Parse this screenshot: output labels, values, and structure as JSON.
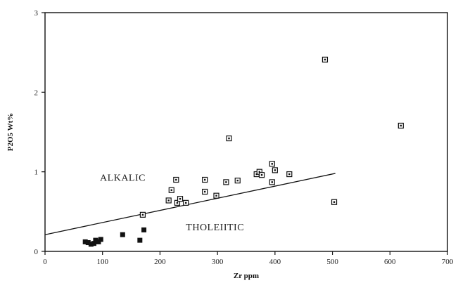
{
  "chart_data": {
    "type": "scatter",
    "xlabel": "Zr ppm",
    "ylabel": "P2O5 Wt%",
    "xlim": [
      0,
      700
    ],
    "ylim": [
      0,
      3
    ],
    "x_ticks": [
      0,
      100,
      200,
      300,
      400,
      500,
      600,
      700
    ],
    "x_tick_labels": [
      "0",
      "100",
      "200",
      "300",
      "400",
      "500",
      "600",
      "700"
    ],
    "y_ticks": [
      0,
      1,
      2,
      3
    ],
    "y_tick_labels": [
      "0",
      "1",
      "2",
      "3"
    ],
    "grid": false,
    "legend": "none",
    "annotations": [
      {
        "text": "ALKALIC",
        "x": 120,
        "y": 0.93
      },
      {
        "text": "THOLEIITIC",
        "x": 250,
        "y": 0.31
      }
    ],
    "divider_line": {
      "x": [
        0,
        505
      ],
      "y": [
        0.21,
        0.98
      ]
    },
    "series": [
      {
        "marker": "open-square",
        "points": [
          [
            170,
            0.46
          ],
          [
            215,
            0.64
          ],
          [
            220,
            0.77
          ],
          [
            228,
            0.9
          ],
          [
            230,
            0.61
          ],
          [
            235,
            0.66
          ],
          [
            245,
            0.61
          ],
          [
            278,
            0.9
          ],
          [
            278,
            0.75
          ],
          [
            298,
            0.7
          ],
          [
            315,
            0.87
          ],
          [
            320,
            1.42
          ],
          [
            335,
            0.89
          ],
          [
            368,
            0.97
          ],
          [
            373,
            1.0
          ],
          [
            377,
            0.96
          ],
          [
            395,
            1.1
          ],
          [
            395,
            0.87
          ],
          [
            400,
            1.02
          ],
          [
            425,
            0.97
          ],
          [
            487,
            2.41
          ],
          [
            503,
            0.62
          ],
          [
            619,
            1.58
          ]
        ]
      },
      {
        "marker": "filled-square",
        "points": [
          [
            70,
            0.12
          ],
          [
            75,
            0.11
          ],
          [
            80,
            0.09
          ],
          [
            85,
            0.1
          ],
          [
            88,
            0.14
          ],
          [
            93,
            0.12
          ],
          [
            97,
            0.15
          ],
          [
            135,
            0.21
          ],
          [
            165,
            0.14
          ],
          [
            172,
            0.27
          ]
        ]
      }
    ]
  }
}
